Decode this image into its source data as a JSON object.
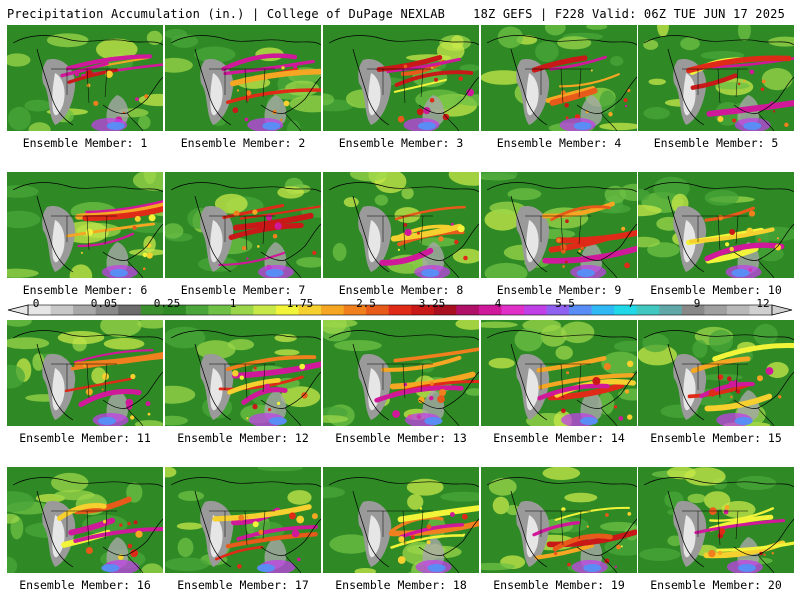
{
  "header": {
    "left": "Precipitation Accumulation (in.) | College of DuPage NEXLAB",
    "right": "18Z GEFS | F228 Valid: 06Z TUE JUN 17 2025"
  },
  "members": [
    "Ensemble Member: 1",
    "Ensemble Member: 2",
    "Ensemble Member: 3",
    "Ensemble Member: 4",
    "Ensemble Member: 5",
    "Ensemble Member: 6",
    "Ensemble Member: 7",
    "Ensemble Member: 8",
    "Ensemble Member: 9",
    "Ensemble Member: 10",
    "Ensemble Member: 11",
    "Ensemble Member: 12",
    "Ensemble Member: 13",
    "Ensemble Member: 14",
    "Ensemble Member: 15",
    "Ensemble Member: 16",
    "Ensemble Member: 17",
    "Ensemble Member: 18",
    "Ensemble Member: 19",
    "Ensemble Member: 20"
  ],
  "colorbar": {
    "tick_labels": [
      "0",
      "0.05",
      "0.25",
      "1",
      "1.75",
      "2.5",
      "3.25",
      "4",
      "5.5",
      "7",
      "9",
      "12"
    ],
    "colors": [
      "#e6e6e6",
      "#c8c8c8",
      "#a8a8a8",
      "#8a8a8a",
      "#6c6c6c",
      "#3c8f2e",
      "#2f8a26",
      "#4aa53a",
      "#6fc046",
      "#9bd64a",
      "#c8e84a",
      "#f2f43a",
      "#f5d02e",
      "#f5a623",
      "#f07f1e",
      "#e85a1a",
      "#e02a18",
      "#c81818",
      "#a81020",
      "#b01068",
      "#d0189a",
      "#e030c8",
      "#c040e8",
      "#9060f0",
      "#5a8cf5",
      "#30b8f5",
      "#20d8e8",
      "#40c8c0",
      "#60a8a8",
      "#888888",
      "#a0a0a0",
      "#b8b8b8",
      "#d0d0d0"
    ]
  }
}
